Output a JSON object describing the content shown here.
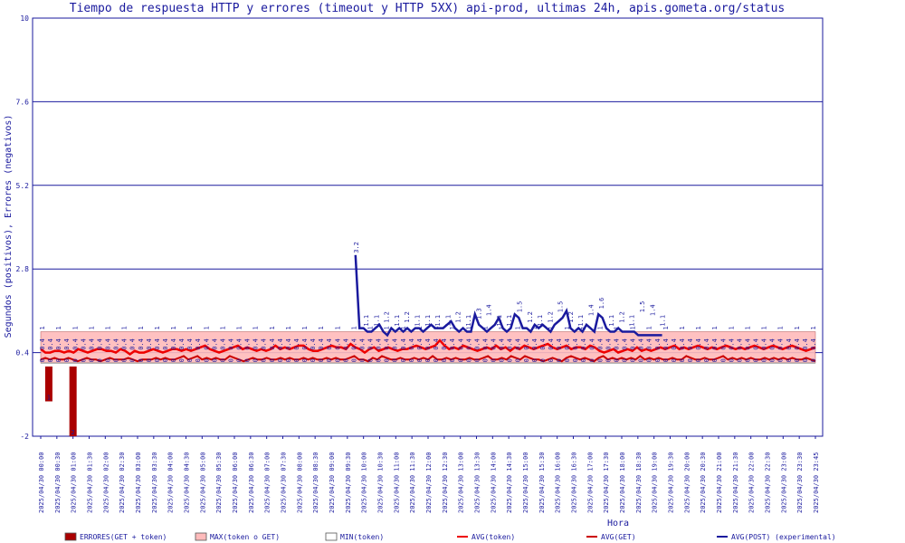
{
  "chart_data": {
    "type": "line",
    "title": "Tiempo de respuesta HTTP y errores (timeout y HTTP 5XX) api-prod, ultimas 24h, apis.gometa.org/status",
    "xlabel": "Hora",
    "ylabel": "Segundos (positivos), Errores (negativos)",
    "ylim": [
      -2,
      10
    ],
    "yticks": [
      "10",
      "7.6",
      "5.2",
      "2.8",
      "0.4",
      "-2"
    ],
    "grid": true,
    "legend_position": "bottom",
    "x_tick_labels": [
      "2025/04/30 00:00",
      "2025/04/30 00:30",
      "2025/04/30 01:00",
      "2025/04/30 01:30",
      "2025/04/30 02:00",
      "2025/04/30 02:30",
      "2025/04/30 03:00",
      "2025/04/30 03:30",
      "2025/04/30 04:00",
      "2025/04/30 04:30",
      "2025/04/30 05:00",
      "2025/04/30 05:30",
      "2025/04/30 06:00",
      "2025/04/30 06:30",
      "2025/04/30 07:00",
      "2025/04/30 07:30",
      "2025/04/30 08:00",
      "2025/04/30 08:30",
      "2025/04/30 09:00",
      "2025/04/30 09:30",
      "2025/04/30 10:00",
      "2025/04/30 10:30",
      "2025/04/30 11:00",
      "2025/04/30 11:30",
      "2025/04/30 12:00",
      "2025/04/30 12:30",
      "2025/04/30 13:00",
      "2025/04/30 13:30",
      "2025/04/30 14:00",
      "2025/04/30 14:30",
      "2025/04/30 15:00",
      "2025/04/30 15:30",
      "2025/04/30 16:00",
      "2025/04/30 16:30",
      "2025/04/30 17:00",
      "2025/04/30 17:30",
      "2025/04/30 18:00",
      "2025/04/30 18:30",
      "2025/04/30 19:00",
      "2025/04/30 19:30",
      "2025/04/30 20:00",
      "2025/04/30 20:30",
      "2025/04/30 21:00",
      "2025/04/30 21:30",
      "2025/04/30 22:00",
      "2025/04/30 22:30",
      "2025/04/30 23:00",
      "2025/04/30 23:30",
      "2025/04/30 23:45"
    ],
    "errors": [
      {
        "x": "2025/04/30 00:15",
        "value": -1,
        "label": "1"
      },
      {
        "x": "2025/04/30 01:00",
        "value": -2,
        "label": "2"
      }
    ],
    "series": [
      {
        "name": "MAX(token o GET)",
        "color": "#ffbbbb",
        "constant": 1.0
      },
      {
        "name": "MIN(token)",
        "color": "#888888",
        "constant": 0.1
      },
      {
        "name": "AVG(token)",
        "color": "#ee0000",
        "values": [
          0.5,
          0.4,
          0.4,
          0.45,
          0.45,
          0.4,
          0.45,
          0.4,
          0.5,
          0.45,
          0.4,
          0.45,
          0.5,
          0.5,
          0.45,
          0.45,
          0.4,
          0.5,
          0.45,
          0.35,
          0.45,
          0.4,
          0.4,
          0.45,
          0.5,
          0.45,
          0.4,
          0.45,
          0.5,
          0.5,
          0.45,
          0.5,
          0.45,
          0.5,
          0.55,
          0.6,
          0.5,
          0.45,
          0.4,
          0.45,
          0.5,
          0.55,
          0.6,
          0.5,
          0.55,
          0.5,
          0.45,
          0.5,
          0.45,
          0.5,
          0.6,
          0.5,
          0.55,
          0.5,
          0.55,
          0.6,
          0.6,
          0.5,
          0.45,
          0.45,
          0.5,
          0.55,
          0.6,
          0.55,
          0.55,
          0.5,
          0.65,
          0.55,
          0.5,
          0.4,
          0.5,
          0.55,
          0.45,
          0.5,
          0.55,
          0.5,
          0.45,
          0.5,
          0.5,
          0.55,
          0.6,
          0.55,
          0.5,
          0.55,
          0.6,
          0.75,
          0.6,
          0.5,
          0.55,
          0.5,
          0.6,
          0.55,
          0.5,
          0.45,
          0.5,
          0.55,
          0.5,
          0.6,
          0.5,
          0.55,
          0.45,
          0.55,
          0.5,
          0.6,
          0.55,
          0.5,
          0.55,
          0.6,
          0.65,
          0.55,
          0.5,
          0.55,
          0.6,
          0.5,
          0.55,
          0.55,
          0.5,
          0.6,
          0.55,
          0.45,
          0.4,
          0.45,
          0.5,
          0.4,
          0.45,
          0.5,
          0.45,
          0.55,
          0.45,
          0.5,
          0.45,
          0.5,
          0.55,
          0.5,
          0.55,
          0.6,
          0.5,
          0.55,
          0.5,
          0.55,
          0.6,
          0.55,
          0.5,
          0.55,
          0.5,
          0.55,
          0.6,
          0.55,
          0.5,
          0.55,
          0.5,
          0.55,
          0.6,
          0.55,
          0.5,
          0.55,
          0.6,
          0.55,
          0.5,
          0.55,
          0.6,
          0.55,
          0.5,
          0.45,
          0.5,
          0.55
        ]
      },
      {
        "name": "AVG(GET)",
        "color": "#cc0000",
        "values": [
          0.2,
          0.25,
          0.2,
          0.25,
          0.2,
          0.2,
          0.25,
          0.2,
          0.15,
          0.2,
          0.25,
          0.2,
          0.2,
          0.15,
          0.2,
          0.25,
          0.2,
          0.2,
          0.2,
          0.25,
          0.2,
          0.15,
          0.2,
          0.2,
          0.2,
          0.25,
          0.2,
          0.25,
          0.2,
          0.2,
          0.25,
          0.3,
          0.2,
          0.25,
          0.3,
          0.2,
          0.25,
          0.2,
          0.25,
          0.2,
          0.2,
          0.3,
          0.25,
          0.2,
          0.15,
          0.2,
          0.25,
          0.2,
          0.2,
          0.25,
          0.2,
          0.2,
          0.25,
          0.2,
          0.25,
          0.2,
          0.2,
          0.25,
          0.2,
          0.25,
          0.2,
          0.2,
          0.25,
          0.2,
          0.25,
          0.2,
          0.2,
          0.25,
          0.3,
          0.2,
          0.2,
          0.15,
          0.25,
          0.2,
          0.3,
          0.25,
          0.2,
          0.2,
          0.25,
          0.2,
          0.2,
          0.25,
          0.2,
          0.25,
          0.2,
          0.3,
          0.2,
          0.2,
          0.25,
          0.2,
          0.25,
          0.2,
          0.2,
          0.25,
          0.2,
          0.2,
          0.25,
          0.3,
          0.2,
          0.2,
          0.25,
          0.2,
          0.3,
          0.25,
          0.2,
          0.3,
          0.25,
          0.2,
          0.2,
          0.15,
          0.2,
          0.25,
          0.2,
          0.15,
          0.25,
          0.3,
          0.25,
          0.2,
          0.25,
          0.2,
          0.15,
          0.25,
          0.3,
          0.2,
          0.25,
          0.2,
          0.25,
          0.2,
          0.25,
          0.2,
          0.3,
          0.2,
          0.25,
          0.2,
          0.25,
          0.2,
          0.2,
          0.25,
          0.2,
          0.2,
          0.3,
          0.25,
          0.2,
          0.2,
          0.25,
          0.2,
          0.2,
          0.25,
          0.3,
          0.2,
          0.25,
          0.2,
          0.25,
          0.2,
          0.25,
          0.2,
          0.2,
          0.25,
          0.2,
          0.25,
          0.2,
          0.25,
          0.2,
          0.25,
          0.2,
          0.2,
          0.25,
          0.2,
          0.15
        ]
      },
      {
        "name": "AVG(POST) (experimental)",
        "color": "#1a1a9e",
        "x_start_index": 39,
        "x_end_index": 77,
        "values": [
          3.2,
          1.1,
          1.1,
          1.0,
          1.0,
          1.1,
          1.2,
          1.0,
          0.9,
          1.1,
          1.0,
          1.1,
          1.0,
          1.1,
          1.0,
          1.1,
          1.1,
          1.0,
          1.1,
          1.2,
          1.1,
          1.1,
          1.1,
          1.2,
          1.3,
          1.1,
          1.0,
          1.1,
          1.0,
          1.0,
          1.5,
          1.2,
          1.1,
          1.0,
          1.1,
          1.2,
          1.4,
          1.1,
          1.0,
          1.1,
          1.5,
          1.4,
          1.1,
          1.1,
          1.0,
          1.2,
          1.1,
          1.2,
          1.1,
          1.0,
          1.2,
          1.3,
          1.4,
          1.6,
          1.1,
          1.0,
          1.1,
          1.0,
          1.2,
          1.1,
          1.0,
          1.5,
          1.4,
          1.1,
          1.0,
          1.0,
          1.1,
          1.0,
          1.0,
          1.0,
          1.0,
          0.9,
          0.9,
          0.9,
          0.9,
          0.9,
          0.9,
          0.9
        ]
      }
    ],
    "data_labels": {
      "post": [
        "3.2",
        "1.1",
        "1.1",
        "1.2",
        "1.1",
        "1.2",
        "1.1",
        "1.1",
        "1.1",
        "1.1",
        "1.2",
        "1.1",
        "1.3",
        "1.4",
        "1.1",
        "1.1",
        "1.5",
        "1.2",
        "1.1",
        "1.2",
        "1.5",
        "1.2",
        "1.1",
        "1.4",
        "1.6",
        "1.1",
        "1.2",
        "1.1",
        "1.5",
        "1.4",
        "1.1"
      ],
      "top": "1",
      "mid": "0.4",
      "low": "0"
    }
  },
  "legend": [
    {
      "label": "ERRORES(GET + token)",
      "swatch": "box",
      "color": "#aa0000"
    },
    {
      "label": "MAX(token o GET)",
      "swatch": "box",
      "color": "#ffbbbb"
    },
    {
      "label": "MIN(token)",
      "swatch": "box",
      "color": "#ffffff"
    },
    {
      "label": "AVG(token)",
      "swatch": "line",
      "color": "#ee0000"
    },
    {
      "label": "AVG(GET)",
      "swatch": "line",
      "color": "#cc0000"
    },
    {
      "label": "AVG(POST) (experimental)",
      "swatch": "line",
      "color": "#1a1a9e"
    }
  ]
}
